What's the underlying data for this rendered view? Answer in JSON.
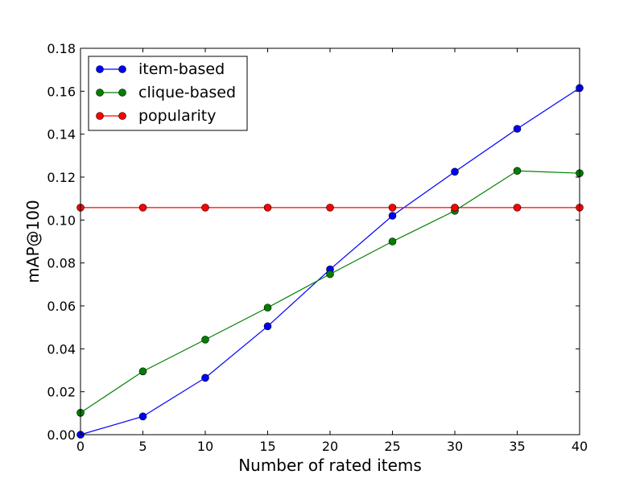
{
  "chart_data": {
    "type": "line",
    "title": "",
    "xlabel": "Number of rated items",
    "ylabel": "mAP@100",
    "xlim": [
      0,
      40
    ],
    "ylim": [
      0,
      0.18
    ],
    "x": [
      0,
      5,
      10,
      15,
      20,
      25,
      30,
      35,
      40
    ],
    "x_ticks": [
      0,
      5,
      10,
      15,
      20,
      25,
      30,
      35,
      40
    ],
    "x_tick_labels": [
      "0",
      "5",
      "10",
      "15",
      "20",
      "25",
      "30",
      "35",
      "40"
    ],
    "y_ticks": [
      0,
      0.02,
      0.04,
      0.06,
      0.08,
      0.1,
      0.12,
      0.14,
      0.16,
      0.18
    ],
    "y_tick_labels": [
      "0.00",
      "0.02",
      "0.04",
      "0.06",
      "0.08",
      "0.10",
      "0.12",
      "0.14",
      "0.16",
      "0.18"
    ],
    "grid": false,
    "legend_position": "top-left",
    "series": [
      {
        "name": "item-based",
        "color": "#0000ff",
        "marker": "circle",
        "values": [
          0.0,
          0.0085,
          0.0265,
          0.0505,
          0.077,
          0.102,
          0.1225,
          0.1425,
          0.1615
        ]
      },
      {
        "name": "clique-based",
        "color": "#007f00",
        "marker": "circle",
        "values": [
          0.0102,
          0.0295,
          0.0443,
          0.0592,
          0.0748,
          0.09,
          0.1043,
          0.1229,
          0.1218
        ]
      },
      {
        "name": "popularity",
        "color": "#ff0000",
        "marker": "circle",
        "values": [
          0.1058,
          0.1058,
          0.1058,
          0.1058,
          0.1058,
          0.1058,
          0.1058,
          0.1058,
          0.1058
        ]
      }
    ]
  }
}
